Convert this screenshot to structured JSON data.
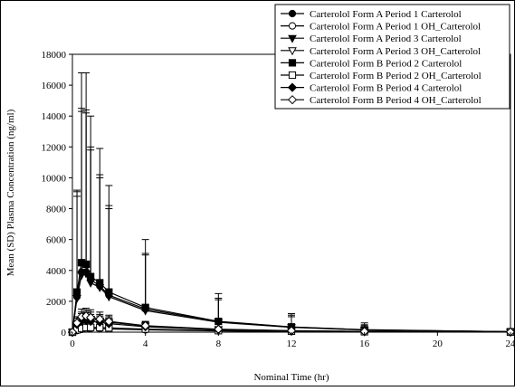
{
  "chart_data": {
    "type": "line",
    "xlabel": "Nominal Time (hr)",
    "ylabel": "Mean (SD) Plasma Concentration (ng/ml)",
    "xlim": [
      0,
      24
    ],
    "ylim": [
      0,
      18000
    ],
    "xticks": [
      0,
      4,
      8,
      12,
      16,
      20,
      24
    ],
    "yticks": [
      0,
      2000,
      4000,
      6000,
      8000,
      10000,
      12000,
      14000,
      16000,
      18000
    ],
    "x": [
      0,
      0.25,
      0.5,
      0.75,
      1,
      1.5,
      2,
      4,
      8,
      12,
      16,
      24
    ],
    "legend_position": "top-right",
    "series": [
      {
        "name": "Carterolol Form A  Period 1  Carterolol",
        "marker": "circle-filled",
        "values": [
          0,
          2300,
          3900,
          3900,
          3400,
          3000,
          2400,
          1500,
          680,
          330,
          150,
          30
        ],
        "sd_upper": [
          0,
          9100,
          14500,
          14400,
          12000,
          10200,
          8200,
          5100,
          2200,
          1100,
          480,
          110
        ]
      },
      {
        "name": "Carterolol Form A  Period 1  OH_Carterolol",
        "marker": "circle-open",
        "values": [
          0,
          100,
          180,
          220,
          240,
          230,
          210,
          150,
          80,
          50,
          25,
          10
        ],
        "sd_upper": [
          0,
          200,
          330,
          380,
          400,
          380,
          350,
          260,
          140,
          90,
          50,
          25
        ]
      },
      {
        "name": "Carterolol Form A  Period 3  Carterolol",
        "marker": "triangle-down-filled",
        "values": [
          0,
          2200,
          3700,
          3800,
          3200,
          2900,
          2300,
          1400,
          640,
          310,
          140,
          30
        ],
        "sd_upper": [
          0,
          8800,
          14300,
          14200,
          11800,
          10000,
          8000,
          5000,
          2100,
          1000,
          450,
          100
        ]
      },
      {
        "name": "Carterolol Form A  Period 3  OH_Carterolol",
        "marker": "triangle-down-open",
        "values": [
          0,
          400,
          800,
          900,
          850,
          750,
          650,
          400,
          180,
          90,
          40,
          15
        ],
        "sd_upper": [
          0,
          700,
          1300,
          1400,
          1300,
          1150,
          1000,
          650,
          300,
          160,
          80,
          30
        ]
      },
      {
        "name": "Carterolol Form B  Period 2  Carterolol",
        "marker": "square-filled",
        "values": [
          0,
          2600,
          4500,
          4400,
          3600,
          3200,
          2600,
          1600,
          700,
          340,
          160,
          30
        ],
        "sd_upper": [
          0,
          9200,
          16800,
          16800,
          14000,
          11900,
          9500,
          6000,
          2500,
          1200,
          600,
          120
        ]
      },
      {
        "name": "Carterolol Form B  Period 2  OH_Carterolol",
        "marker": "square-open",
        "values": [
          0,
          150,
          250,
          300,
          310,
          300,
          280,
          200,
          100,
          60,
          30,
          10
        ],
        "sd_upper": [
          0,
          280,
          420,
          480,
          500,
          480,
          450,
          330,
          170,
          110,
          60,
          25
        ]
      },
      {
        "name": "Carterolol Form B  Period 4  Carterolol",
        "marker": "diamond-filled",
        "values": [
          0,
          500,
          700,
          750,
          700,
          650,
          550,
          350,
          160,
          80,
          40,
          10
        ],
        "sd_upper": [
          0,
          900,
          1200,
          1250,
          1150,
          1050,
          900,
          600,
          280,
          150,
          80,
          25
        ]
      },
      {
        "name": "Carterolol Form B  Period 4  OH_Carterolol",
        "marker": "diamond-open",
        "values": [
          0,
          600,
          1000,
          1050,
          950,
          850,
          700,
          420,
          190,
          95,
          45,
          15
        ],
        "sd_upper": [
          0,
          1000,
          1500,
          1550,
          1450,
          1300,
          1100,
          700,
          320,
          170,
          90,
          30
        ]
      }
    ]
  }
}
